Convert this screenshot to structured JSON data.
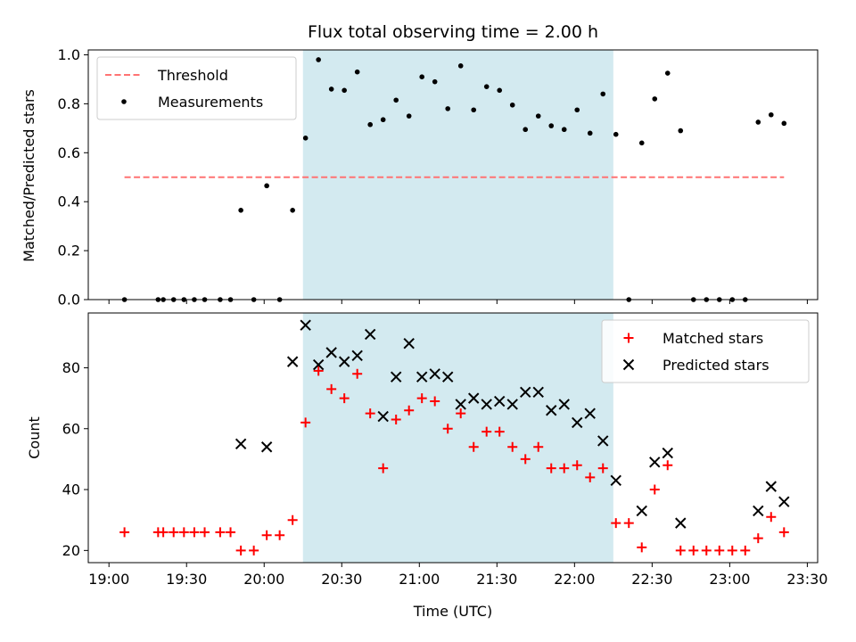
{
  "chart_data": {
    "type": "scatter",
    "title": "Flux total observing time = 2.00 h",
    "xlabel": "Time (UTC)",
    "x_unit": "minutes_from_19:00",
    "x_ticks": [
      "19:00",
      "19:30",
      "20:00",
      "20:30",
      "21:00",
      "21:30",
      "22:00",
      "22:30",
      "23:00",
      "23:30"
    ],
    "xlim": [
      "18:52",
      "23:34"
    ],
    "highlight_span": [
      "20:15",
      "22:15"
    ],
    "highlight_color": "#d3eaf0",
    "panels": [
      {
        "ylabel": "Matched/Predicted stars",
        "ylim": [
          0,
          1.02
        ],
        "y_ticks": [
          "0.0",
          "0.2",
          "0.4",
          "0.6",
          "0.8",
          "1.0"
        ],
        "legend_position": "upper left",
        "series": [
          {
            "name": "Threshold",
            "style": "dashed-line",
            "color": "#ff7373",
            "x": [
              "19:06",
              "23:21"
            ],
            "y": [
              0.5,
              0.5
            ]
          },
          {
            "name": "Measurements",
            "style": "dot",
            "color": "#000000",
            "x": [
              "19:06",
              "19:19",
              "19:21",
              "19:25",
              "19:29",
              "19:33",
              "19:37",
              "19:43",
              "19:47",
              "19:51",
              "19:56",
              "20:01",
              "20:06",
              "20:11",
              "20:16",
              "20:21",
              "20:26",
              "20:31",
              "20:36",
              "20:41",
              "20:46",
              "20:51",
              "20:56",
              "21:01",
              "21:06",
              "21:11",
              "21:16",
              "21:21",
              "21:26",
              "21:31",
              "21:36",
              "21:41",
              "21:46",
              "21:51",
              "21:56",
              "22:01",
              "22:06",
              "22:11",
              "22:16",
              "22:21",
              "22:26",
              "22:31",
              "22:36",
              "22:41",
              "22:46",
              "22:51",
              "22:56",
              "23:01",
              "23:06",
              "23:11",
              "23:16",
              "23:21"
            ],
            "y": [
              0,
              0,
              0,
              0,
              0,
              0,
              0,
              0,
              0,
              0.365,
              0,
              0.465,
              0,
              0.365,
              0.66,
              0.98,
              0.86,
              0.855,
              0.93,
              0.715,
              0.735,
              0.815,
              0.75,
              0.91,
              0.89,
              0.78,
              0.955,
              0.775,
              0.87,
              0.855,
              0.795,
              0.695,
              0.75,
              0.71,
              0.695,
              0.775,
              0.68,
              0.84,
              0.675,
              0,
              0.64,
              0.82,
              0.925,
              0.69,
              0,
              0,
              0,
              0,
              0,
              0.725,
              0.755,
              0.72
            ]
          }
        ]
      },
      {
        "ylabel": "Count",
        "ylim": [
          16,
          98
        ],
        "y_ticks": [
          "20",
          "40",
          "60",
          "80"
        ],
        "legend_position": "upper right",
        "series": [
          {
            "name": "Matched stars",
            "style": "plus",
            "color": "#ff0000",
            "x": [
              "19:06",
              "19:19",
              "19:21",
              "19:25",
              "19:29",
              "19:33",
              "19:37",
              "19:43",
              "19:47",
              "19:51",
              "19:56",
              "20:01",
              "20:06",
              "20:11",
              "20:16",
              "20:21",
              "20:26",
              "20:31",
              "20:36",
              "20:41",
              "20:46",
              "20:51",
              "20:56",
              "21:01",
              "21:06",
              "21:11",
              "21:16",
              "21:21",
              "21:26",
              "21:31",
              "21:36",
              "21:41",
              "21:46",
              "21:51",
              "21:56",
              "22:01",
              "22:06",
              "22:11",
              "22:16",
              "22:21",
              "22:26",
              "22:31",
              "22:36",
              "22:41",
              "22:46",
              "22:51",
              "22:56",
              "23:01",
              "23:06",
              "23:11",
              "23:16",
              "23:21"
            ],
            "y": [
              26,
              26,
              26,
              26,
              26,
              26,
              26,
              26,
              26,
              20,
              20,
              25,
              25,
              30,
              62,
              79,
              73,
              70,
              78,
              65,
              47,
              63,
              66,
              70,
              69,
              60,
              65,
              54,
              59,
              59,
              54,
              50,
              54,
              47,
              47,
              48,
              44,
              47,
              29,
              29,
              21,
              40,
              48,
              20,
              20,
              20,
              20,
              20,
              20,
              24,
              31,
              26
            ]
          },
          {
            "name": "Predicted stars",
            "style": "x",
            "color": "#000000",
            "x": [
              "19:51",
              "20:01",
              "20:11",
              "20:16",
              "20:21",
              "20:26",
              "20:31",
              "20:36",
              "20:41",
              "20:46",
              "20:51",
              "20:56",
              "21:01",
              "21:06",
              "21:11",
              "21:16",
              "21:21",
              "21:26",
              "21:31",
              "21:36",
              "21:41",
              "21:46",
              "21:51",
              "21:56",
              "22:01",
              "22:06",
              "22:11",
              "22:16",
              "22:26",
              "22:31",
              "22:36",
              "22:41",
              "23:11",
              "23:16",
              "23:21"
            ],
            "y": [
              55,
              54,
              82,
              94,
              81,
              85,
              82,
              84,
              91,
              64,
              77,
              88,
              77,
              78,
              77,
              68,
              70,
              68,
              69,
              68,
              72,
              72,
              66,
              68,
              62,
              65,
              56,
              43,
              33,
              49,
              52,
              29,
              33,
              41,
              36
            ]
          }
        ]
      }
    ]
  }
}
